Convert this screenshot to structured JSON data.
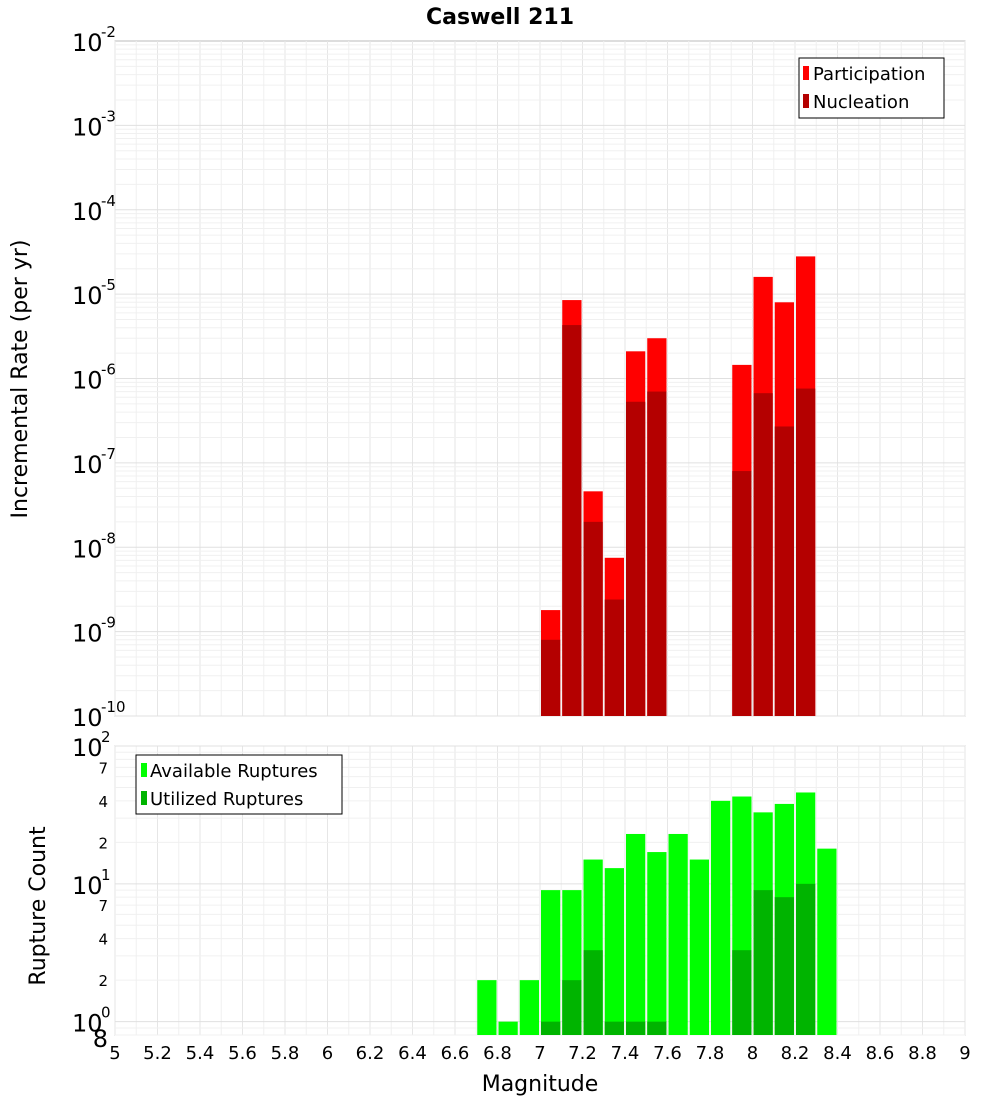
{
  "chart_data": [
    {
      "type": "bar",
      "title": "Caswell 211",
      "ylabel": "Incremental Rate (per yr)",
      "yscale": "log",
      "ylim": [
        1e-10,
        0.01
      ],
      "xlim": [
        5,
        9
      ],
      "grid": true,
      "legend": "top-right",
      "y_tick_labels": [
        {
          "base": "10",
          "exp": "-10"
        },
        {
          "base": "10",
          "exp": "-9"
        },
        {
          "base": "10",
          "exp": "-8"
        },
        {
          "base": "10",
          "exp": "-7"
        },
        {
          "base": "10",
          "exp": "-6"
        },
        {
          "base": "10",
          "exp": "-5"
        },
        {
          "base": "10",
          "exp": "-4"
        },
        {
          "base": "10",
          "exp": "-3"
        },
        {
          "base": "10",
          "exp": "-2"
        }
      ],
      "series": [
        {
          "name": "Participation",
          "color": "#ff0000",
          "x": [
            7.05,
            7.15,
            7.25,
            7.35,
            7.45,
            7.55,
            7.95,
            8.05,
            8.15,
            8.25
          ],
          "values": [
            1.8e-09,
            8.5e-06,
            4.6e-08,
            7.5e-09,
            2.1e-06,
            3e-06,
            1.45e-06,
            1.6e-05,
            8e-06,
            2.8e-05
          ]
        },
        {
          "name": "Nucleation",
          "color": "#b40000",
          "x": [
            7.05,
            7.15,
            7.25,
            7.35,
            7.45,
            7.55,
            7.95,
            8.05,
            8.15,
            8.25
          ],
          "values": [
            8e-10,
            4.3e-06,
            2e-08,
            2.4e-09,
            5.3e-07,
            7e-07,
            8e-08,
            6.7e-07,
            2.7e-07,
            7.6e-07
          ]
        }
      ]
    },
    {
      "type": "bar",
      "xlabel": "Magnitude",
      "ylabel": "Rupture Count",
      "yscale": "log",
      "ylim": [
        0.8,
        100
      ],
      "xlim": [
        5,
        9
      ],
      "grid": true,
      "legend": "top-left",
      "x_tick_labels": [
        "5",
        "5.2",
        "5.4",
        "5.6",
        "5.8",
        "6",
        "6.2",
        "6.4",
        "6.6",
        "6.8",
        "7",
        "7.2",
        "7.4",
        "7.6",
        "7.8",
        "8",
        "8.2",
        "8.4",
        "8.6",
        "8.8",
        "9"
      ],
      "y_major_labels": [
        {
          "value": 1,
          "base": "10",
          "exp": "0"
        },
        {
          "value": 10,
          "base": "10",
          "exp": "1"
        },
        {
          "value": 100,
          "base": "10",
          "exp": "2"
        }
      ],
      "y_minor_labels": [
        {
          "value": 0.8,
          "label": "8"
        },
        {
          "value": 2,
          "label": "2"
        },
        {
          "value": 4,
          "label": "4"
        },
        {
          "value": 7,
          "label": "7"
        },
        {
          "value": 20,
          "label": "2"
        },
        {
          "value": 40,
          "label": "4"
        },
        {
          "value": 70,
          "label": "7"
        }
      ],
      "series": [
        {
          "name": "Available Ruptures",
          "color": "#00ff00",
          "x": [
            6.75,
            6.85,
            6.95,
            7.05,
            7.15,
            7.25,
            7.35,
            7.45,
            7.55,
            7.65,
            7.75,
            7.85,
            7.95,
            8.05,
            8.15,
            8.25,
            8.35
          ],
          "values": [
            2,
            1,
            2,
            9,
            9,
            15,
            13,
            23,
            17,
            23,
            15,
            40,
            43,
            33,
            38,
            46,
            18
          ]
        },
        {
          "name": "Utilized Ruptures",
          "color": "#00b400",
          "x": [
            7.05,
            7.15,
            7.25,
            7.35,
            7.45,
            7.55,
            7.95,
            8.05,
            8.15,
            8.25
          ],
          "values": [
            1,
            2,
            3.3,
            1,
            1,
            1,
            3.3,
            9,
            8,
            10
          ]
        }
      ]
    }
  ]
}
